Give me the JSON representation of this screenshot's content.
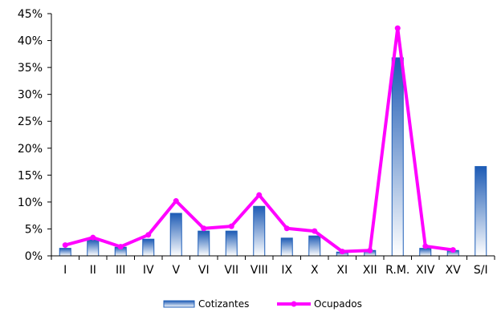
{
  "chart_data": {
    "type": "bar",
    "categories": [
      "I",
      "II",
      "III",
      "IV",
      "V",
      "VI",
      "VII",
      "VIII",
      "IX",
      "X",
      "XI",
      "XII",
      "R.M.",
      "XIV",
      "XV",
      "S/I"
    ],
    "y_tick_labels": [
      "0%",
      "5%",
      "10%",
      "15%",
      "20%",
      "25%",
      "30%",
      "35%",
      "40%",
      "45%"
    ],
    "ylim": [
      0,
      45
    ],
    "grid": false,
    "legend_position": "bottom",
    "series": [
      {
        "name": "Cotizantes",
        "type": "bar",
        "color": "#1f5fb8",
        "values": [
          1.4,
          3.0,
          1.6,
          3.1,
          7.9,
          4.6,
          4.6,
          9.2,
          3.3,
          3.7,
          0.7,
          1.0,
          36.8,
          1.4,
          1.0,
          16.6
        ]
      },
      {
        "name": "Ocupados",
        "type": "line",
        "color": "#ff00ff",
        "values": [
          2.0,
          3.4,
          1.7,
          3.9,
          10.2,
          5.1,
          5.5,
          11.3,
          5.1,
          4.6,
          0.8,
          1.0,
          42.3,
          1.8,
          1.1,
          null
        ]
      }
    ]
  }
}
